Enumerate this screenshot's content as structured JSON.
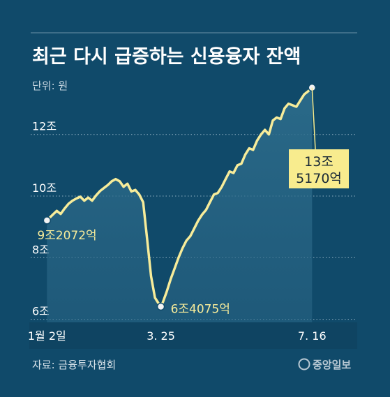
{
  "chart_data": {
    "type": "line",
    "title": "최근 다시 급증하는 신용융자 잔액",
    "unit_label": "단위: 원",
    "y_tick_labels": [
      "6조",
      "8조",
      "10조",
      "12조"
    ],
    "y_ticks": [
      6,
      8,
      10,
      12
    ],
    "ylim": [
      5.9,
      14.1
    ],
    "x_tick_labels": [
      "1월 2일",
      "3. 25",
      "7. 16"
    ],
    "x_ticks": [
      0,
      58,
      135
    ],
    "xlim": [
      -9,
      158
    ],
    "x_unit": "trading days from 1월 2일",
    "series": [
      {
        "x": [
          0,
          3,
          5,
          7,
          9,
          11,
          13,
          15,
          17,
          19,
          21,
          23,
          25,
          27,
          29,
          31,
          33,
          35,
          37,
          39,
          41,
          43,
          45,
          47,
          49,
          51,
          53,
          55,
          57,
          58,
          59,
          61,
          63,
          65,
          67,
          69,
          71,
          73,
          75,
          77,
          79,
          81,
          83,
          85,
          87,
          89,
          91,
          93,
          95,
          97,
          99,
          101,
          103,
          105,
          107,
          109,
          111,
          113,
          115,
          117,
          119,
          121,
          123,
          125,
          127,
          129,
          131,
          133,
          135
        ],
        "values": [
          9.21,
          9.4,
          9.52,
          9.42,
          9.6,
          9.75,
          9.85,
          9.92,
          9.98,
          9.85,
          9.95,
          9.85,
          10.02,
          10.16,
          10.26,
          10.36,
          10.48,
          10.55,
          10.48,
          10.3,
          10.4,
          10.15,
          10.2,
          10.05,
          9.8,
          8.6,
          7.4,
          6.7,
          6.5,
          6.41,
          6.55,
          6.9,
          7.3,
          7.65,
          8.0,
          8.3,
          8.55,
          8.7,
          8.95,
          9.2,
          9.4,
          9.55,
          9.8,
          10.05,
          10.1,
          10.3,
          10.55,
          10.8,
          10.75,
          11.0,
          11.05,
          11.35,
          11.55,
          11.5,
          11.8,
          12.0,
          12.15,
          12.0,
          12.45,
          12.55,
          12.5,
          12.85,
          13.0,
          12.95,
          12.9,
          13.1,
          13.3,
          13.4,
          13.52
        ]
      }
    ],
    "annotations": {
      "start": "9조2072억",
      "low": "6조4075억",
      "end_line1": "13조",
      "end_line2": "5170억"
    },
    "source": "자료: 금융투자협회",
    "logo": "중앙일보",
    "colors": {
      "background": "#104a6a",
      "line": "#f7ec9a",
      "callout_box": "#f8ec8e",
      "marker": "#f3f3f3"
    }
  }
}
